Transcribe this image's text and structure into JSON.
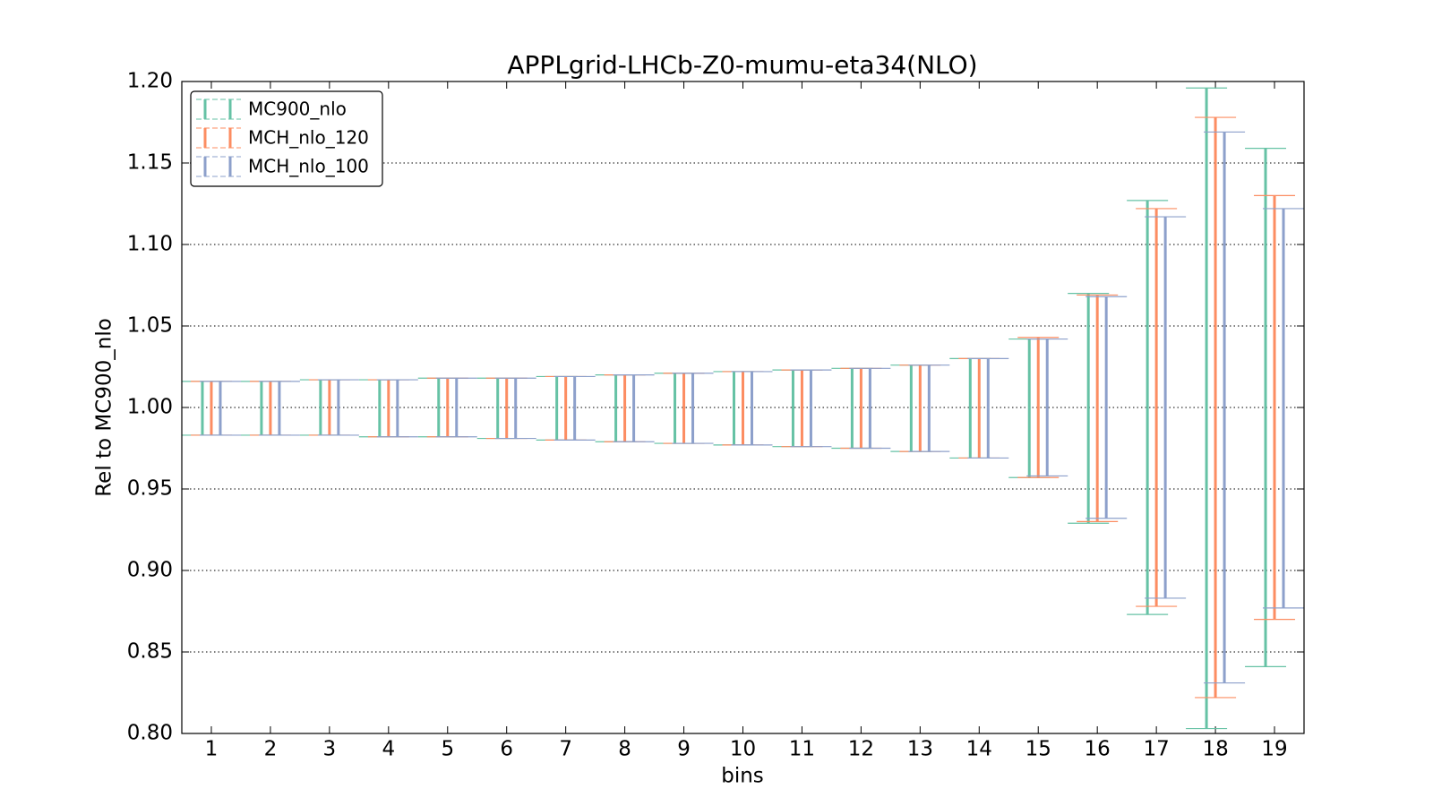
{
  "chart_data": {
    "type": "errorbar",
    "title": "APPLgrid-LHCb-Z0-mumu-eta34(NLO)",
    "x_label": "bins",
    "y_label": "Rel to MC900_nlo",
    "x": [
      1,
      2,
      3,
      4,
      5,
      6,
      7,
      8,
      9,
      10,
      11,
      12,
      13,
      14,
      15,
      16,
      17,
      18,
      19
    ],
    "xlim": [
      0.5,
      19.5
    ],
    "xticks": [
      1,
      2,
      3,
      4,
      5,
      6,
      7,
      8,
      9,
      10,
      11,
      12,
      13,
      14,
      15,
      16,
      17,
      18,
      19
    ],
    "ylim": [
      0.8,
      1.2
    ],
    "yticks": [
      {
        "value": 0.8,
        "label": "0.80"
      },
      0.85,
      {
        "value": 0.9,
        "label": "0.90"
      },
      0.95,
      {
        "value": 1.0,
        "label": "1.00"
      },
      1.05,
      {
        "value": 1.1,
        "label": "1.10"
      },
      1.15,
      {
        "value": 1.2,
        "label": "1.20"
      }
    ],
    "grid": true,
    "legend": "upper left",
    "series": [
      {
        "name": "MC900_nlo",
        "color": "#66c2a5",
        "low": [
          0.983,
          0.983,
          0.983,
          0.982,
          0.982,
          0.981,
          0.98,
          0.979,
          0.978,
          0.977,
          0.976,
          0.975,
          0.973,
          0.969,
          0.957,
          0.929,
          0.873,
          0.803,
          0.841
        ],
        "high": [
          1.016,
          1.016,
          1.017,
          1.017,
          1.018,
          1.018,
          1.019,
          1.02,
          1.021,
          1.022,
          1.023,
          1.024,
          1.026,
          1.03,
          1.042,
          1.07,
          1.127,
          1.196,
          1.159
        ]
      },
      {
        "name": "MCH_nlo_120",
        "color": "#fc8d62",
        "low": [
          0.983,
          0.983,
          0.983,
          0.982,
          0.982,
          0.981,
          0.98,
          0.979,
          0.978,
          0.977,
          0.976,
          0.975,
          0.973,
          0.969,
          0.957,
          0.93,
          0.878,
          0.822,
          0.87
        ],
        "high": [
          1.016,
          1.016,
          1.017,
          1.017,
          1.018,
          1.018,
          1.019,
          1.02,
          1.021,
          1.022,
          1.023,
          1.024,
          1.026,
          1.03,
          1.043,
          1.069,
          1.122,
          1.178,
          1.13
        ]
      },
      {
        "name": "MCH_nlo_100",
        "color": "#8da0cb",
        "low": [
          0.983,
          0.983,
          0.983,
          0.982,
          0.982,
          0.981,
          0.98,
          0.979,
          0.978,
          0.977,
          0.976,
          0.975,
          0.973,
          0.969,
          0.958,
          0.932,
          0.883,
          0.831,
          0.877
        ],
        "high": [
          1.016,
          1.016,
          1.017,
          1.017,
          1.018,
          1.018,
          1.019,
          1.02,
          1.021,
          1.022,
          1.023,
          1.024,
          1.026,
          1.03,
          1.042,
          1.068,
          1.117,
          1.169,
          1.122
        ]
      }
    ]
  }
}
